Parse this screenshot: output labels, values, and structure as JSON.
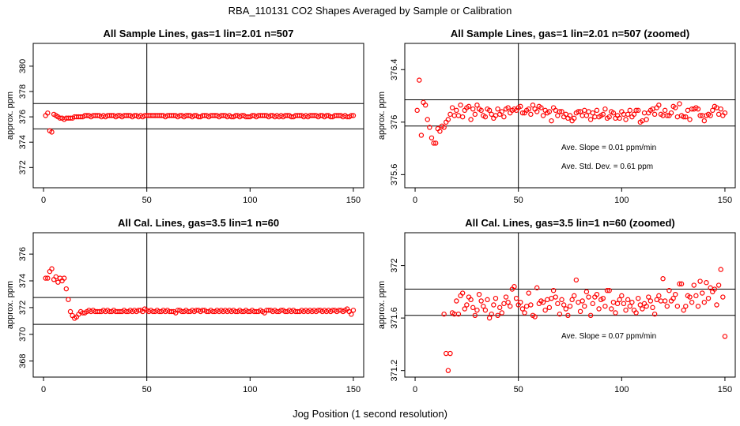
{
  "figure": {
    "title": "RBA_110131  CO2 Shapes Averaged by Sample or Calibration",
    "xlabel": "Jog Position (1 second resolution)"
  },
  "colors": {
    "points": "#ff0000",
    "lines": "#000000",
    "background": "#ffffff"
  },
  "chart_data": [
    {
      "type": "scatter",
      "title": "All Sample Lines, gas=1 lin=2.01 n=507",
      "ylabel": "approx. ppm",
      "xlim": [
        -5,
        155
      ],
      "ylim": [
        370.4,
        381.8
      ],
      "xticks": [
        0,
        50,
        100,
        150
      ],
      "yticks": [
        372,
        374,
        376,
        378,
        380
      ],
      "vline": 50,
      "hlines": [
        375.05,
        377.05
      ],
      "annotations": [],
      "x_range": [
        1,
        150
      ],
      "y": [
        376.1,
        376.3,
        374.9,
        374.8,
        376.2,
        376.1,
        376.0,
        375.9,
        375.9,
        375.8,
        375.9,
        375.9,
        375.9,
        375.9,
        376.0,
        376.0,
        376.0,
        376.0,
        376.0,
        376.1,
        376.1,
        376.1,
        376.0,
        376.1,
        376.1,
        376.1,
        376.1,
        376.0,
        376.1,
        376.0,
        376.1,
        376.1,
        376.1,
        376.1,
        376.0,
        376.1,
        376.1,
        376.0,
        376.1,
        376.1,
        376.1,
        376.1,
        376.0,
        376.1,
        376.1,
        376.0,
        376.1,
        376.0,
        376.1,
        376.1,
        376.1,
        376.1,
        376.1,
        376.1,
        376.1,
        376.1,
        376.1,
        376.1,
        376.0,
        376.1,
        376.1,
        376.1,
        376.1,
        376.1,
        376.0,
        376.1,
        376.1,
        376.0,
        376.1,
        376.1,
        376.1,
        376.0,
        376.1,
        376.1,
        376.0,
        376.0,
        376.1,
        376.1,
        376.1,
        376.0,
        376.1,
        376.1,
        376.1,
        376.1,
        376.0,
        376.1,
        376.1,
        376.1,
        376.0,
        376.1,
        376.0,
        376.0,
        376.1,
        376.1,
        376.0,
        376.1,
        376.1,
        376.0,
        376.0,
        376.0,
        376.1,
        376.1,
        376.0,
        376.1,
        376.1,
        376.1,
        376.1,
        376.1,
        376.0,
        376.1,
        376.1,
        376.0,
        376.1,
        376.0,
        376.1,
        376.0,
        376.1,
        376.1,
        376.1,
        376.0,
        376.0,
        376.1,
        376.1,
        376.1,
        376.1,
        376.0,
        376.1,
        376.0,
        376.1,
        376.1,
        376.1,
        376.1,
        376.0,
        376.1,
        376.1,
        376.0,
        376.1,
        376.1,
        376.0,
        376.0,
        376.1,
        376.1,
        376.1,
        376.1,
        376.0,
        376.1,
        376.0,
        376.0,
        376.1,
        376.1
      ]
    },
    {
      "type": "scatter",
      "title": "All Sample Lines, gas=1 lin=2.01 n=507 (zoomed)",
      "ylabel": "approx. ppm",
      "xlim": [
        -5,
        155
      ],
      "ylim": [
        375.5,
        376.6
      ],
      "xticks": [
        0,
        50,
        100,
        150
      ],
      "yticks": [
        375.6,
        376.0,
        376.4
      ],
      "vline": 50,
      "hlines": [
        375.97,
        376.17
      ],
      "annotations": [
        "Ave. Slope =  0.01  ppm/min",
        "Ave. Std. Dev. =  0.61  ppm"
      ],
      "x_range": [
        1,
        150
      ],
      "y": [
        376.09,
        376.32,
        375.9,
        376.15,
        376.13,
        376.02,
        375.96,
        375.88,
        375.84,
        375.84,
        375.95,
        375.93,
        375.97,
        375.96,
        376.0,
        376.02,
        376.06,
        376.11,
        376.05,
        376.09,
        376.05,
        376.13,
        376.04,
        376.09,
        376.11,
        376.12,
        376.02,
        376.1,
        376.06,
        376.13,
        376.1,
        376.09,
        376.05,
        376.04,
        376.1,
        376.09,
        376.06,
        376.03,
        376.05,
        376.1,
        376.06,
        376.08,
        376.04,
        376.1,
        376.11,
        376.07,
        376.09,
        376.1,
        376.09,
        376.11,
        376.12,
        376.07,
        376.07,
        376.09,
        376.1,
        376.06,
        376.13,
        376.1,
        376.08,
        376.12,
        376.11,
        376.05,
        376.09,
        376.07,
        376.08,
        376.01,
        376.11,
        376.09,
        376.05,
        376.08,
        376.08,
        376.04,
        376.06,
        376.03,
        376.05,
        376.01,
        376.03,
        376.07,
        376.08,
        376.08,
        376.05,
        376.09,
        376.05,
        376.08,
        376.02,
        376.07,
        376.04,
        376.09,
        376.04,
        376.05,
        376.06,
        376.1,
        376.03,
        376.04,
        376.08,
        376.07,
        376.03,
        376.05,
        376.03,
        376.08,
        376.06,
        376.02,
        376.06,
        376.09,
        376.04,
        376.06,
        376.09,
        376.09,
        376.0,
        376.01,
        376.07,
        376.02,
        376.07,
        376.09,
        376.1,
        376.06,
        376.11,
        376.13,
        376.06,
        376.05,
        376.09,
        376.05,
        376.05,
        376.07,
        376.12,
        376.11,
        376.04,
        376.14,
        376.05,
        376.04,
        376.04,
        376.09,
        376.02,
        376.1,
        376.1,
        376.11,
        376.1,
        376.05,
        376.05,
        376.01,
        376.05,
        376.06,
        376.05,
        376.09,
        376.12,
        376.11,
        376.06,
        376.1,
        376.05,
        376.07
      ]
    },
    {
      "type": "scatter",
      "title": "All Cal. Lines, gas=3.5 lin=1 n=60",
      "ylabel": "approx. ppm",
      "xlim": [
        -5,
        155
      ],
      "ylim": [
        366.8,
        377.6
      ],
      "xticks": [
        0,
        50,
        100,
        150
      ],
      "yticks": [
        368,
        370,
        372,
        374,
        376
      ],
      "vline": 50,
      "hlines": [
        370.75,
        372.75
      ],
      "annotations": [],
      "x_range": [
        1,
        150
      ],
      "y": [
        374.2,
        374.2,
        374.7,
        374.9,
        374.1,
        374.3,
        373.9,
        374.2,
        374.0,
        374.2,
        373.4,
        372.6,
        371.7,
        371.4,
        371.2,
        371.3,
        371.5,
        371.7,
        371.6,
        371.6,
        371.7,
        371.8,
        371.7,
        371.8,
        371.7,
        371.7,
        371.7,
        371.7,
        371.8,
        371.7,
        371.8,
        371.7,
        371.7,
        371.8,
        371.7,
        371.7,
        371.7,
        371.7,
        371.8,
        371.7,
        371.7,
        371.8,
        371.7,
        371.8,
        371.7,
        371.8,
        371.8,
        371.7,
        371.9,
        371.8,
        371.7,
        371.8,
        371.7,
        371.7,
        371.8,
        371.7,
        371.7,
        371.8,
        371.7,
        371.8,
        371.7,
        371.7,
        371.7,
        371.6,
        371.8,
        371.8,
        371.7,
        371.7,
        371.8,
        371.7,
        371.7,
        371.8,
        371.7,
        371.8,
        371.8,
        371.7,
        371.8,
        371.8,
        371.7,
        371.7,
        371.8,
        371.7,
        371.7,
        371.8,
        371.7,
        371.8,
        371.7,
        371.8,
        371.7,
        371.8,
        371.7,
        371.8,
        371.7,
        371.7,
        371.8,
        371.7,
        371.7,
        371.8,
        371.7,
        371.7,
        371.8,
        371.7,
        371.7,
        371.7,
        371.8,
        371.7,
        371.6,
        371.8,
        371.8,
        371.8,
        371.7,
        371.8,
        371.7,
        371.7,
        371.8,
        371.8,
        371.7,
        371.7,
        371.8,
        371.7,
        371.8,
        371.7,
        371.7,
        371.7,
        371.8,
        371.7,
        371.8,
        371.7,
        371.8,
        371.7,
        371.8,
        371.7,
        371.8,
        371.8,
        371.7,
        371.8,
        371.7,
        371.8,
        371.7,
        371.8,
        371.8,
        371.7,
        371.8,
        371.8,
        371.7,
        371.8,
        371.9,
        371.7,
        371.5,
        371.8
      ]
    },
    {
      "type": "scatter",
      "title": "All Cal. Lines, gas=3.5 lin=1 n=60 (zoomed)",
      "ylabel": "approx. ppm",
      "xlim": [
        -5,
        155
      ],
      "ylim": [
        371.15,
        372.25
      ],
      "xticks": [
        0,
        50,
        100,
        150
      ],
      "yticks": [
        371.2,
        371.6,
        372.0
      ],
      "vline": 50,
      "hlines": [
        371.62,
        371.82
      ],
      "annotations": [
        "Ave. Slope =  0.07  ppm/min"
      ],
      "x_range": [
        14,
        150
      ],
      "y": [
        371.63,
        371.33,
        371.2,
        371.33,
        371.64,
        371.63,
        371.73,
        371.63,
        371.77,
        371.79,
        371.67,
        371.7,
        371.76,
        371.74,
        371.68,
        371.62,
        371.66,
        371.78,
        371.73,
        371.69,
        371.66,
        371.74,
        371.6,
        371.63,
        371.7,
        371.75,
        371.62,
        371.68,
        371.64,
        371.71,
        371.76,
        371.72,
        371.69,
        371.82,
        371.84,
        371.75,
        371.7,
        371.72,
        371.67,
        371.64,
        371.69,
        371.79,
        371.7,
        371.62,
        371.61,
        371.83,
        371.71,
        371.73,
        371.72,
        371.66,
        371.74,
        371.68,
        371.75,
        371.81,
        371.76,
        371.71,
        371.63,
        371.74,
        371.7,
        371.67,
        371.62,
        371.69,
        371.74,
        371.77,
        371.89,
        371.72,
        371.65,
        371.73,
        371.69,
        371.8,
        371.76,
        371.62,
        371.71,
        371.76,
        371.78,
        371.67,
        371.74,
        371.75,
        371.69,
        371.81,
        371.81,
        371.67,
        371.72,
        371.64,
        371.71,
        371.74,
        371.77,
        371.71,
        371.66,
        371.74,
        371.69,
        371.72,
        371.66,
        371.64,
        371.75,
        371.7,
        371.67,
        371.71,
        371.69,
        371.76,
        371.73,
        371.68,
        371.63,
        371.74,
        371.77,
        371.73,
        371.9,
        371.73,
        371.69,
        371.81,
        371.73,
        371.75,
        371.78,
        371.69,
        371.86,
        371.86,
        371.66,
        371.69,
        371.77,
        371.76,
        371.72,
        371.85,
        371.77,
        371.69,
        371.88,
        371.79,
        371.72,
        371.87,
        371.75,
        371.83,
        371.8,
        371.82,
        371.7,
        371.85,
        371.97,
        371.76,
        371.46
      ]
    }
  ]
}
